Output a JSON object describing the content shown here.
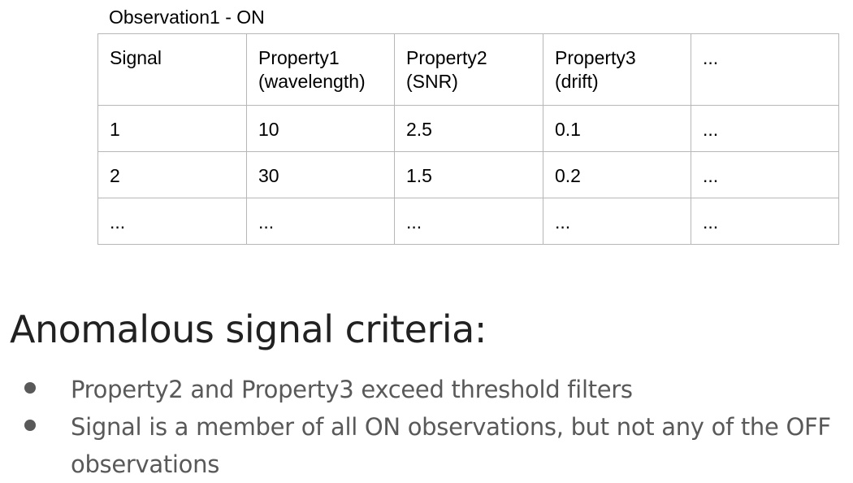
{
  "table_caption": "Observation1 - ON",
  "table": {
    "header": [
      "Signal",
      "Property1\n(wavelength)",
      "Property2\n(SNR)",
      "Property3\n(drift)",
      "..."
    ],
    "rows": [
      [
        "1",
        "10",
        "2.5",
        "0.1",
        "..."
      ],
      [
        "2",
        "30",
        "1.5",
        "0.2",
        "..."
      ],
      [
        "...",
        "...",
        "...",
        "...",
        "..."
      ]
    ]
  },
  "heading": "Anomalous signal criteria:",
  "criteria": [
    "Property2 and Property3 exceed threshold filters",
    "Signal is a member of all ON observations, but not any of the OFF observations"
  ]
}
